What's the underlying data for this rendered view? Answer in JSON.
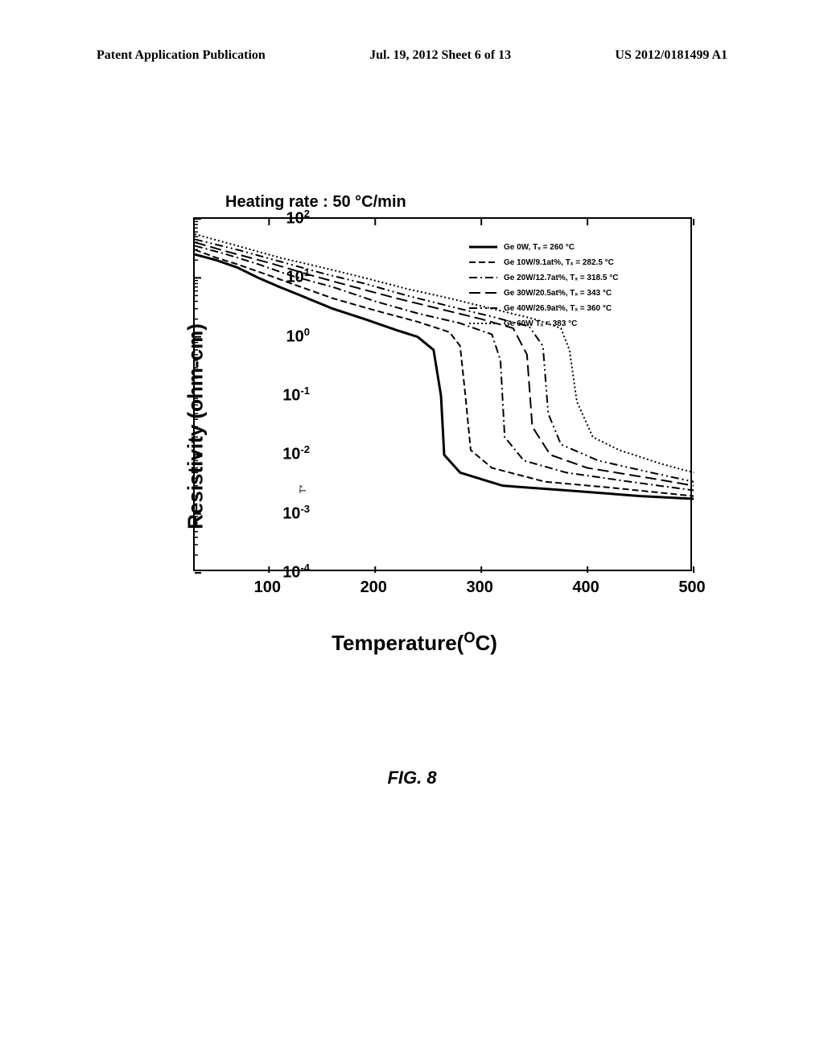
{
  "header": {
    "left": "Patent Application Publication",
    "center": "Jul. 19, 2012  Sheet 6 of 13",
    "right": "US 2012/0181499 A1"
  },
  "chart": {
    "type": "line",
    "title": "Heating rate : 50 °C/min",
    "xlabel": "Temperature(°C)",
    "ylabel": "Resistivity (ohm-cm)",
    "tx_marker": "T˟",
    "xlim": [
      30,
      500
    ],
    "ylim_exp": [
      -4,
      2
    ],
    "x_ticks": [
      100,
      200,
      300,
      400,
      500
    ],
    "y_tick_exponents": [
      2,
      1,
      0,
      -1,
      -2,
      -3,
      -4
    ],
    "background_color": "#ffffff",
    "axis_color": "#000000",
    "series": [
      {
        "label": "Ge 0W, Tₓ = 260 °C",
        "style": "solid",
        "dash": "",
        "color": "#000000",
        "points": [
          [
            30,
            25
          ],
          [
            50,
            20
          ],
          [
            70,
            15
          ],
          [
            90,
            10
          ],
          [
            110,
            7
          ],
          [
            130,
            5
          ],
          [
            160,
            3
          ],
          [
            190,
            2
          ],
          [
            220,
            1.3
          ],
          [
            240,
            1
          ],
          [
            255,
            0.6
          ],
          [
            262,
            0.1
          ],
          [
            265,
            0.01
          ],
          [
            280,
            0.005
          ],
          [
            320,
            0.003
          ],
          [
            380,
            0.0025
          ],
          [
            450,
            0.002
          ],
          [
            500,
            0.0018
          ]
        ]
      },
      {
        "label": "Ge 10W/9.1at%, Tₓ = 282.5 °C",
        "style": "dash",
        "dash": "8,4",
        "color": "#000000",
        "points": [
          [
            30,
            30
          ],
          [
            50,
            22
          ],
          [
            70,
            17
          ],
          [
            100,
            11
          ],
          [
            130,
            7
          ],
          [
            160,
            4.5
          ],
          [
            200,
            2.8
          ],
          [
            240,
            1.8
          ],
          [
            270,
            1.2
          ],
          [
            280,
            0.7
          ],
          [
            285,
            0.1
          ],
          [
            290,
            0.012
          ],
          [
            310,
            0.006
          ],
          [
            360,
            0.0035
          ],
          [
            420,
            0.0028
          ],
          [
            500,
            0.002
          ]
        ]
      },
      {
        "label": "Ge 20W/12.7at%, Tₓ = 318.5 °C",
        "style": "dashdot",
        "dash": "10,4,2,4",
        "color": "#000000",
        "points": [
          [
            30,
            35
          ],
          [
            60,
            25
          ],
          [
            90,
            17
          ],
          [
            120,
            11
          ],
          [
            160,
            7
          ],
          [
            200,
            4
          ],
          [
            240,
            2.5
          ],
          [
            280,
            1.7
          ],
          [
            310,
            1.1
          ],
          [
            318,
            0.4
          ],
          [
            322,
            0.02
          ],
          [
            340,
            0.008
          ],
          [
            380,
            0.005
          ],
          [
            440,
            0.0035
          ],
          [
            500,
            0.0025
          ]
        ]
      },
      {
        "label": "Ge 30W/20.5at%, Tₓ = 343 °C",
        "style": "longdash",
        "dash": "14,6",
        "color": "#000000",
        "points": [
          [
            30,
            40
          ],
          [
            60,
            28
          ],
          [
            100,
            18
          ],
          [
            140,
            11
          ],
          [
            180,
            7
          ],
          [
            220,
            4.5
          ],
          [
            260,
            3
          ],
          [
            300,
            2
          ],
          [
            330,
            1.4
          ],
          [
            343,
            0.5
          ],
          [
            348,
            0.03
          ],
          [
            365,
            0.01
          ],
          [
            400,
            0.006
          ],
          [
            460,
            0.004
          ],
          [
            500,
            0.003
          ]
        ]
      },
      {
        "label": "Ge 40W/26.9at%, Tₓ = 360 °C",
        "style": "dashdotdot",
        "dash": "10,4,2,4,2,4",
        "color": "#000000",
        "points": [
          [
            30,
            45
          ],
          [
            70,
            30
          ],
          [
            110,
            19
          ],
          [
            150,
            12
          ],
          [
            190,
            8
          ],
          [
            230,
            5
          ],
          [
            270,
            3.3
          ],
          [
            310,
            2.2
          ],
          [
            345,
            1.5
          ],
          [
            358,
            0.7
          ],
          [
            363,
            0.05
          ],
          [
            375,
            0.015
          ],
          [
            410,
            0.008
          ],
          [
            460,
            0.005
          ],
          [
            500,
            0.0035
          ]
        ]
      },
      {
        "label": "Ge 60W Tₓ  = 383 °C",
        "style": "dot",
        "dash": "2,3",
        "color": "#000000",
        "points": [
          [
            30,
            55
          ],
          [
            70,
            35
          ],
          [
            110,
            22
          ],
          [
            150,
            15
          ],
          [
            190,
            10
          ],
          [
            230,
            6.5
          ],
          [
            270,
            4.5
          ],
          [
            310,
            3
          ],
          [
            350,
            2
          ],
          [
            375,
            1.4
          ],
          [
            383,
            0.6
          ],
          [
            390,
            0.08
          ],
          [
            405,
            0.02
          ],
          [
            430,
            0.012
          ],
          [
            470,
            0.007
          ],
          [
            500,
            0.005
          ]
        ]
      }
    ]
  },
  "figure_caption": "FIG. 8"
}
